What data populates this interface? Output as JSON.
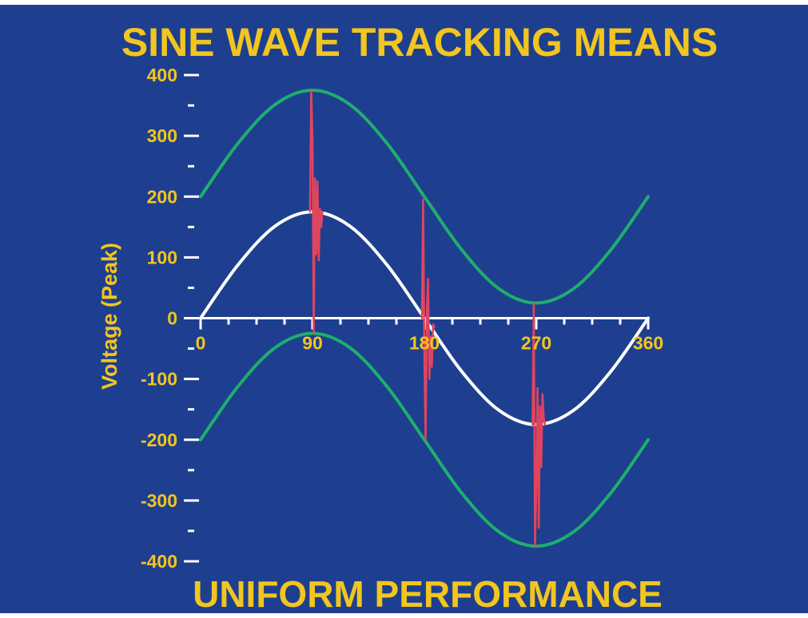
{
  "chart_data": {
    "type": "line",
    "title": "SINE WAVE TRACKING MEANS",
    "subtitle": "UNIFORM PERFORMANCE",
    "xlabel": "",
    "ylabel": "Voltage (Peak)",
    "xlim": [
      0,
      360
    ],
    "ylim": [
      -400,
      400
    ],
    "x_ticks": [
      0,
      90,
      180,
      270,
      360
    ],
    "y_ticks": [
      400,
      300,
      200,
      100,
      0,
      -100,
      -200,
      -300,
      -400
    ],
    "x_minor_step": 22.5,
    "y_minor_step": 50,
    "grid": false,
    "colors": {
      "background": "#1e3f8f",
      "text": "#f2c51f",
      "axis": "#ffffff",
      "reference_sine": "#ffffff",
      "envelope": "#1fae6e",
      "transient": "#e0455f"
    },
    "series": [
      {
        "role": "reference_sine",
        "x": [
          0,
          30,
          60,
          90,
          120,
          150,
          180,
          210,
          240,
          270,
          300,
          330,
          360
        ],
        "y": [
          0,
          87.5,
          151.6,
          175,
          151.6,
          87.5,
          0,
          -87.5,
          -151.6,
          -175,
          -151.6,
          -87.5,
          0
        ]
      },
      {
        "role": "upper_envelope",
        "x": [
          0,
          30,
          60,
          90,
          120,
          150,
          180,
          210,
          240,
          270,
          300,
          330,
          360
        ],
        "y": [
          200,
          287.5,
          351.6,
          375,
          351.6,
          287.5,
          200,
          112.5,
          48.4,
          25,
          48.4,
          112.5,
          200
        ]
      },
      {
        "role": "lower_envelope",
        "x": [
          0,
          30,
          60,
          90,
          120,
          150,
          180,
          210,
          240,
          270,
          300,
          330,
          360
        ],
        "y": [
          -200,
          -112.5,
          -48.4,
          -25,
          -48.4,
          -112.5,
          -200,
          -287.5,
          -351.6,
          -375,
          -351.6,
          -287.5,
          -200
        ]
      },
      {
        "role": "transient_90",
        "x": [
          88,
          89,
          90,
          91,
          92,
          93,
          94,
          95,
          96,
          97,
          98
        ],
        "y": [
          175,
          375,
          290,
          -25,
          230,
          105,
          225,
          95,
          180,
          150,
          175
        ]
      },
      {
        "role": "transient_180",
        "x": [
          178,
          179,
          180,
          181,
          182,
          183,
          184,
          185,
          186,
          187,
          188
        ],
        "y": [
          0,
          195,
          -65,
          -200,
          15,
          65,
          -100,
          -30,
          -80,
          -10,
          -15
        ]
      },
      {
        "role": "transient_270",
        "x": [
          267,
          268,
          269,
          270,
          271,
          272,
          273,
          274,
          275,
          276,
          277
        ],
        "y": [
          -175,
          25,
          -375,
          -275,
          -115,
          -345,
          -145,
          -245,
          -125,
          -165,
          -175
        ]
      }
    ]
  }
}
